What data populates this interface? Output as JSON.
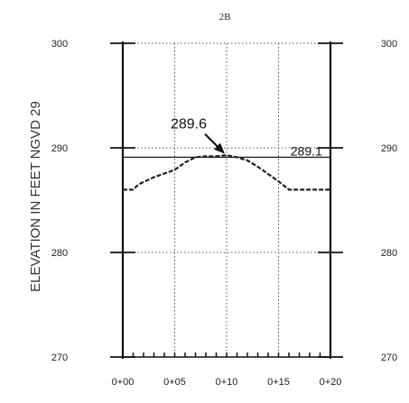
{
  "chart_data": {
    "type": "line",
    "title": "2B",
    "xlabel": "",
    "ylabel": "ELEVATION IN FEET NGVD 29",
    "x_tick_labels": [
      "0+00",
      "0+05",
      "0+10",
      "0+15",
      "0+20"
    ],
    "x_ticks": [
      0,
      5,
      10,
      15,
      20
    ],
    "y_ticks": [
      270,
      280,
      290,
      300
    ],
    "y_tick_labels_left": [
      "270",
      "280",
      "290",
      "300"
    ],
    "y_tick_labels_right": [
      "270",
      "280",
      "290",
      "300"
    ],
    "xlim": [
      0,
      20
    ],
    "ylim": [
      270,
      300
    ],
    "grid": true,
    "grid_style": "dotted",
    "series": [
      {
        "style": "dashed",
        "x": [
          0,
          1,
          1.5,
          3,
          5,
          6,
          7,
          8,
          9,
          10,
          11,
          12,
          13,
          14,
          15,
          16,
          17,
          18,
          19,
          20
        ],
        "y": [
          286,
          286,
          286.5,
          287.2,
          287.9,
          288.6,
          289.1,
          289.2,
          289.2,
          289.3,
          289.1,
          288.8,
          288.2,
          287.5,
          286.8,
          286,
          286,
          286,
          286,
          286
        ]
      }
    ],
    "reference_line": {
      "y": 289.1,
      "label": "289.1"
    },
    "annotations": [
      {
        "text": "289.6",
        "x": 10,
        "y": 289.6,
        "arrow": true
      }
    ]
  }
}
